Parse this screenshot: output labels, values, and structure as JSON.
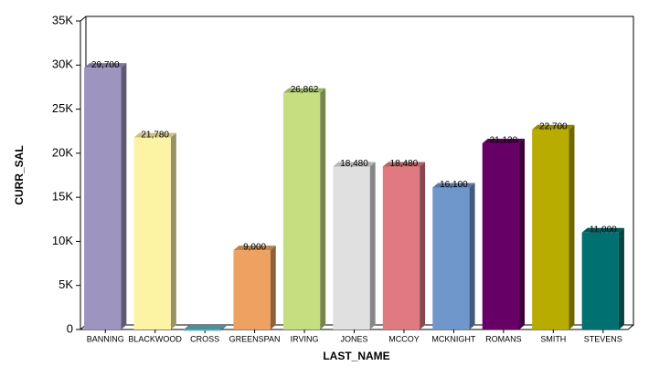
{
  "chart_data": {
    "type": "bar3d",
    "categories": [
      "BANNING",
      "BLACKWOOD",
      "CROSS",
      "GREENSPAN",
      "IRVING",
      "JONES",
      "MCCOY",
      "MCKNIGHT",
      "ROMANS",
      "SMITH",
      "STEVENS"
    ],
    "values": [
      29700,
      21780,
      0,
      9000,
      26862,
      18480,
      18480,
      16100,
      21120,
      22700,
      11000
    ],
    "value_labels": [
      "29,700",
      "21,780",
      null,
      "9,000",
      "26,862",
      "18,480",
      "18,480",
      "16,100",
      "21,120",
      "22,700",
      "11,000"
    ],
    "colors": [
      "#9e94c0",
      "#fdf3a4",
      "#5fb3bd",
      "#eea160",
      "#c5de7f",
      "#e0e0e0",
      "#e07a80",
      "#7097cb",
      "#660066",
      "#b8ac00",
      "#007070"
    ],
    "x_label": "LAST_NAME",
    "y_label": "CURR_SAL",
    "ylim": [
      0,
      35000
    ],
    "yticks": [
      0,
      {
        "value": 5000,
        "label": "5K"
      },
      {
        "value": 10000,
        "label": "10K"
      },
      {
        "value": 15000,
        "label": "15K"
      },
      {
        "value": 20000,
        "label": "20K"
      },
      {
        "value": 25000,
        "label": "25K"
      },
      {
        "value": 30000,
        "label": "30K"
      },
      {
        "value": 35000,
        "label": "35K"
      }
    ]
  }
}
